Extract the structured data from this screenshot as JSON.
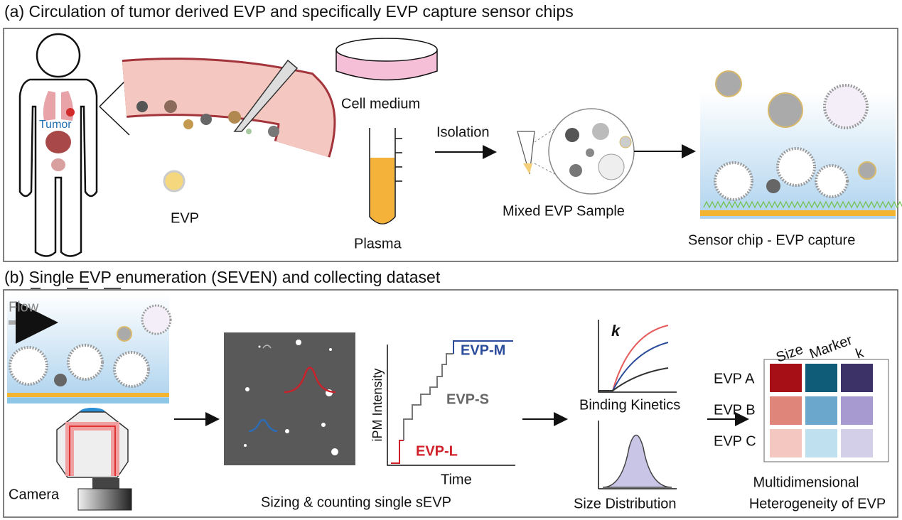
{
  "panel_a": {
    "title": "(a) Circulation of tumor derived EVP and specifically EVP capture sensor chips",
    "tumor": "Tumor",
    "evp": "EVP",
    "cell_medium": "Cell medium",
    "plasma": "Plasma",
    "isolation": "Isolation",
    "mixed_sample": "Mixed EVP Sample",
    "sensor_chip": "Sensor chip - EVP capture"
  },
  "panel_b": {
    "title": "(b) Single EVP enumeration (SEVEN) and collecting dataset",
    "flow": "Flow",
    "camera": "Camera",
    "sizing": "Sizing & counting single sEVP",
    "y_axis": "iPM Intensity",
    "x_axis": "Time",
    "evp_m": "EVP-M",
    "evp_s": "EVP-S",
    "evp_l": "EVP-L",
    "k": "k",
    "binding": "Binding Kinetics",
    "size_distribution": "Size Distribution",
    "heatmap": {
      "columns": [
        "Size",
        "Marker",
        "k"
      ],
      "rows": [
        "EVP A",
        "EVP B",
        "EVP C"
      ]
    },
    "summary": [
      "Multidimensional",
      "Heterogeneity of EVP"
    ]
  }
}
